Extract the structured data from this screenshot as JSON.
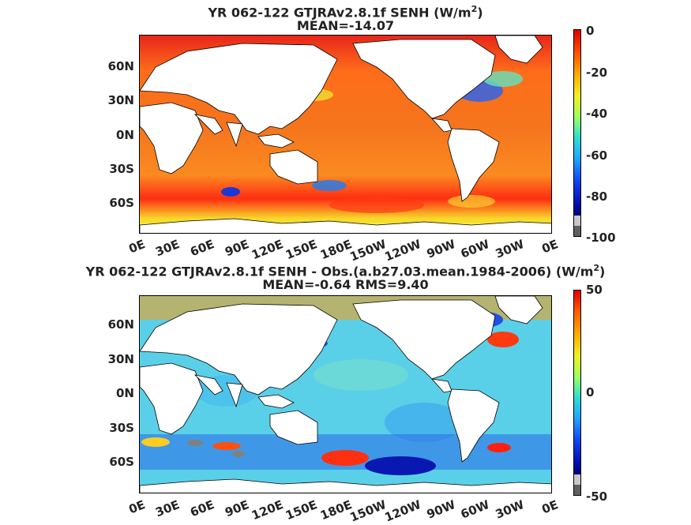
{
  "panels": [
    {
      "title_main": "YR 062-122 GTJRAv2.8.1f  SENH (W/m",
      "title_sup": "2",
      "title_end": ")",
      "subtitle": "MEAN=-14.07",
      "colorbar_ticks": [
        "0",
        "-20",
        "-40",
        "-60",
        "-80",
        "-100"
      ],
      "colorbar_range": [
        -100,
        0
      ]
    },
    {
      "title_main": "YR 062-122 GTJRAv2.8.1f SENH - Obs.(a.b27.03.mean.1984-2006) (W/m",
      "title_sup": "2",
      "title_end": ")",
      "subtitle": "MEAN=-0.64 RMS=9.40",
      "colorbar_ticks": [
        "50",
        "0",
        "-50"
      ],
      "colorbar_range": [
        -50,
        50
      ]
    }
  ],
  "axes": {
    "lat_ticks": [
      "60N",
      "30N",
      "0N",
      "30S",
      "60S"
    ],
    "lon_ticks": [
      "0E",
      "30E",
      "60E",
      "90E",
      "120E",
      "150E",
      "180E",
      "150W",
      "120W",
      "90W",
      "60W",
      "30W",
      "0E"
    ]
  },
  "colors": {
    "land": "#ffffff",
    "panel1_ocean": "#f26a1b",
    "panel2_ocean": "#54d3e8"
  }
}
